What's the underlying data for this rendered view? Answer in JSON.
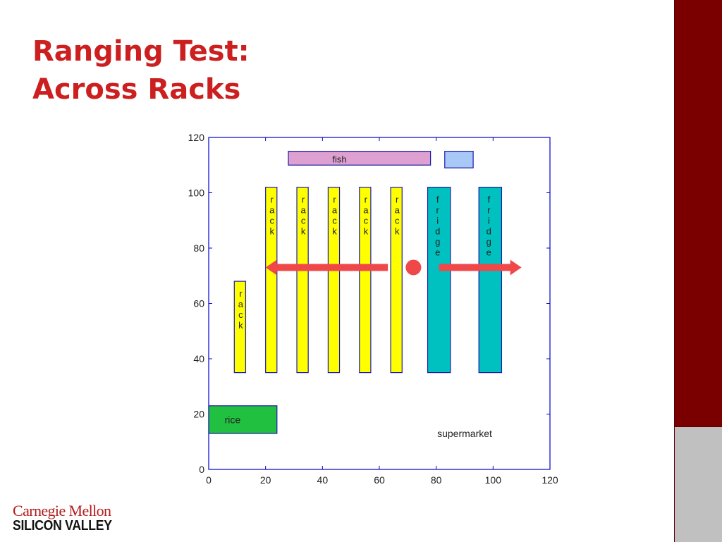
{
  "title": {
    "line1": "Ranging Test:",
    "line2": "Across Racks"
  },
  "logo": {
    "line1": "Carnegie Mellon",
    "line2": "SILICON VALLEY"
  },
  "colors": {
    "title": "#cc1f1f",
    "sidebar_top": "#7a0000",
    "sidebar_bottom": "#c0c0c0",
    "axis": "#0000cc",
    "arrow": "#f04848"
  },
  "chart_data": {
    "type": "diagram",
    "xlim": [
      0,
      120
    ],
    "ylim": [
      0,
      120
    ],
    "xticks": [
      0,
      20,
      40,
      60,
      80,
      100,
      120
    ],
    "yticks": [
      0,
      20,
      40,
      60,
      80,
      100,
      120
    ],
    "blocks": [
      {
        "kind": "rack",
        "x0": 9,
        "x1": 13,
        "y0": 35,
        "y1": 68,
        "fill": "#ffff00",
        "label": "rack"
      },
      {
        "kind": "rack",
        "x0": 20,
        "x1": 24,
        "y0": 35,
        "y1": 102,
        "fill": "#ffff00",
        "label": "rack"
      },
      {
        "kind": "rack",
        "x0": 31,
        "x1": 35,
        "y0": 35,
        "y1": 102,
        "fill": "#ffff00",
        "label": "rack"
      },
      {
        "kind": "rack",
        "x0": 42,
        "x1": 46,
        "y0": 35,
        "y1": 102,
        "fill": "#ffff00",
        "label": "rack"
      },
      {
        "kind": "rack",
        "x0": 53,
        "x1": 57,
        "y0": 35,
        "y1": 102,
        "fill": "#ffff00",
        "label": "rack"
      },
      {
        "kind": "rack",
        "x0": 64,
        "x1": 68,
        "y0": 35,
        "y1": 102,
        "fill": "#ffff00",
        "label": "rack"
      },
      {
        "kind": "fridge",
        "x0": 77,
        "x1": 85,
        "y0": 35,
        "y1": 102,
        "fill": "#00c0c0",
        "label": "fridge"
      },
      {
        "kind": "fridge",
        "x0": 95,
        "x1": 103,
        "y0": 35,
        "y1": 102,
        "fill": "#00c0c0",
        "label": "fridge"
      },
      {
        "kind": "fish",
        "x0": 28,
        "x1": 78,
        "y0": 110,
        "y1": 115,
        "fill": "#dda0d0",
        "label": "fish"
      },
      {
        "kind": "unlabeled",
        "x0": 83,
        "x1": 93,
        "y0": 109,
        "y1": 115,
        "fill": "#a8c8f8",
        "label": ""
      },
      {
        "kind": "rice",
        "x0": 0,
        "x1": 24,
        "y0": 13,
        "y1": 23,
        "fill": "#22c040",
        "label": "rice"
      }
    ],
    "marker": {
      "x": 72,
      "y": 73,
      "color": "#f04848"
    },
    "arrows": [
      {
        "x_from": 63,
        "x_to": 20,
        "y": 73
      },
      {
        "x_from": 81,
        "x_to": 110,
        "y": 73
      }
    ],
    "annotations": [
      {
        "text": "supermarket",
        "x": 90,
        "y": 13
      }
    ]
  }
}
